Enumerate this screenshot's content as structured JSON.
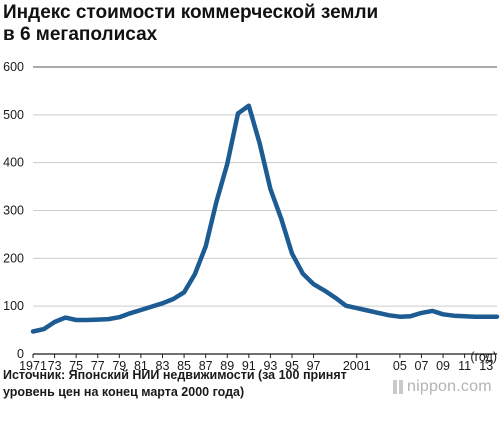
{
  "title_lines": [
    "Индекс стоимости коммерческой земли",
    "в 6 мегаполисах"
  ],
  "source_lines": [
    "Источник: Японский НИИ недвижимости (за 100 принят",
    "уровень цен на конец марта 2000 года)"
  ],
  "logo_text": "nippon.com",
  "colors": {
    "line": "#1d5b93",
    "axis": "#1a1a1a",
    "grid": "#cccccc"
  },
  "chart_data": {
    "type": "line",
    "title": "Индекс стоимости коммерческой земли в 6 мегаполисах",
    "xlabel": "(год)",
    "ylabel": "",
    "ylim": [
      0,
      600
    ],
    "yticks": [
      0,
      100,
      200,
      300,
      400,
      500,
      600
    ],
    "xlim": [
      1971,
      2014
    ],
    "xticks": [
      {
        "year": 1971,
        "label": "1971"
      },
      {
        "year": 1973,
        "label": "73"
      },
      {
        "year": 1975,
        "label": "75"
      },
      {
        "year": 1977,
        "label": "77"
      },
      {
        "year": 1979,
        "label": "79"
      },
      {
        "year": 1981,
        "label": "81"
      },
      {
        "year": 1983,
        "label": "83"
      },
      {
        "year": 1985,
        "label": "85"
      },
      {
        "year": 1987,
        "label": "87"
      },
      {
        "year": 1989,
        "label": "89"
      },
      {
        "year": 1991,
        "label": "91"
      },
      {
        "year": 1993,
        "label": "93"
      },
      {
        "year": 1995,
        "label": "95"
      },
      {
        "year": 1997,
        "label": "97"
      },
      {
        "year": 2001,
        "label": "2001"
      },
      {
        "year": 2005,
        "label": "05"
      },
      {
        "year": 2007,
        "label": "07"
      },
      {
        "year": 2009,
        "label": "09"
      },
      {
        "year": 2011,
        "label": "11"
      },
      {
        "year": 2013,
        "label": "13"
      }
    ],
    "grid": true,
    "series": [
      {
        "x": [
          1971,
          1972,
          1973,
          1974,
          1975,
          1976,
          1977,
          1978,
          1979,
          1980,
          1981,
          1982,
          1983,
          1984,
          1985,
          1986,
          1987,
          1988,
          1989,
          1990,
          1991,
          1992,
          1993,
          1994,
          1995,
          1996,
          1997,
          1998,
          1999,
          2000,
          2001,
          2002,
          2003,
          2004,
          2005,
          2006,
          2007,
          2008,
          2009,
          2010,
          2011,
          2012,
          2013,
          2014
        ],
        "values": [
          47,
          52,
          67,
          76,
          71,
          71,
          72,
          73,
          77,
          85,
          92,
          99,
          106,
          115,
          129,
          167,
          225,
          318,
          397,
          503,
          519,
          441,
          345,
          283,
          210,
          168,
          146,
          133,
          118,
          101,
          96,
          91,
          86,
          81,
          78,
          79,
          86,
          90,
          83,
          80,
          79,
          78,
          78,
          78
        ]
      }
    ]
  }
}
